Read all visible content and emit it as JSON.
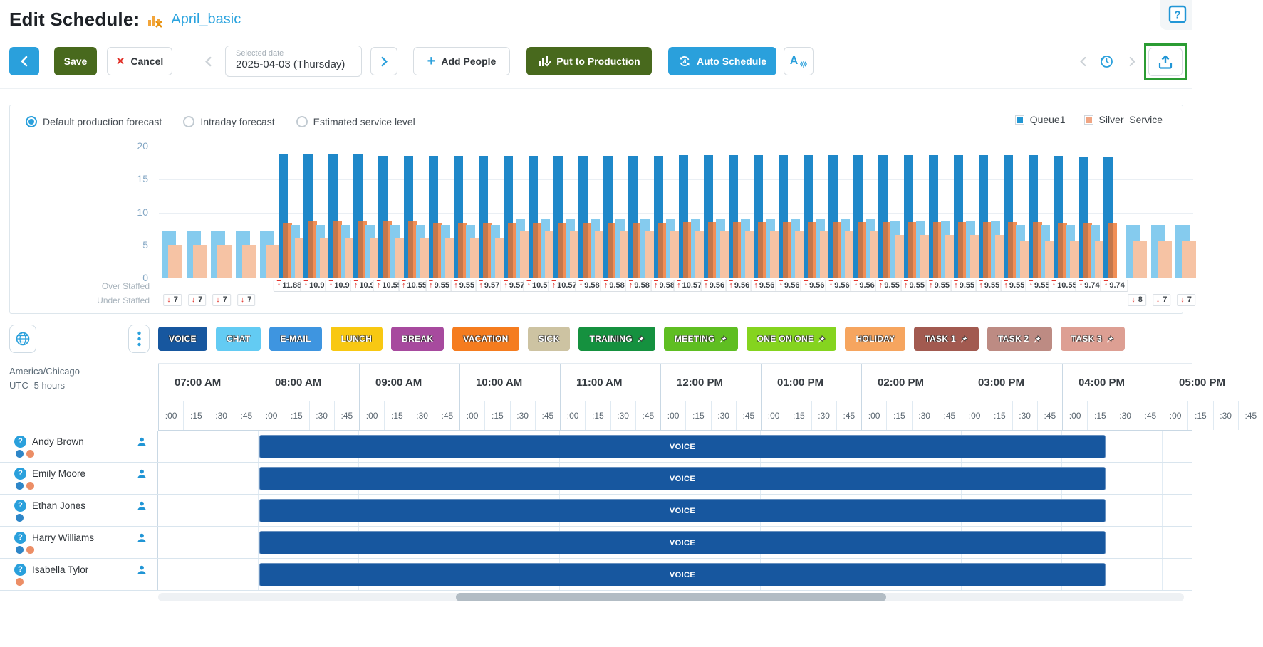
{
  "colors": {
    "accent_blue": "#2aa0dc",
    "link_blue": "#29a3dd",
    "dark_green": "#48691d",
    "red": "#e2342c",
    "voice_bar": "#17579f"
  },
  "header": {
    "title": "Edit Schedule:",
    "schedule_name": "April_basic",
    "help": "?"
  },
  "toolbar": {
    "save": "Save",
    "cancel": "Cancel",
    "cancel_x": "✕",
    "date_label": "Selected date",
    "date_value": "2025-04-03 (Thursday)",
    "add_people": "Add People",
    "put_to_production": "Put to Production",
    "auto_schedule": "Auto Schedule",
    "font_settings_letter": "A"
  },
  "forecast": {
    "options": [
      {
        "label": "Default production forecast",
        "selected": true
      },
      {
        "label": "Intraday forecast",
        "selected": false
      },
      {
        "label": "Estimated service level",
        "selected": false
      }
    ],
    "legend": [
      {
        "label": "Queue1",
        "color": "#2196d3"
      },
      {
        "label": "Silver_Service",
        "color": "#f0a583"
      }
    ]
  },
  "chart_data": {
    "type": "bar",
    "yticks": [
      0,
      5,
      10,
      15,
      20
    ],
    "ylim": [
      0,
      20
    ],
    "legend_position": "top-right",
    "series": [
      {
        "name": "Queue1",
        "color": "#1f88c9",
        "color_light": "#85cbee"
      },
      {
        "name": "Silver_Service",
        "color": "#ee732c",
        "color_light": "#f6c3a4"
      }
    ],
    "over_staffed_label": "Over Staffed",
    "under_staffed_label": "Under Staffed",
    "under_staffed_left": [
      7,
      7,
      7,
      7
    ],
    "under_staffed_right": [
      8,
      7,
      7
    ],
    "over_staffed": [
      11.88,
      10.9,
      10.9,
      10.9,
      10.55,
      10.55,
      9.55,
      9.55,
      9.57,
      9.57,
      10.57,
      10.57,
      9.58,
      9.58,
      9.58,
      9.58,
      10.57,
      9.56,
      9.56,
      9.56,
      9.56,
      9.56,
      9.56,
      9.56,
      9.55,
      9.55,
      9.55,
      9.55,
      9.55,
      9.55,
      9.55,
      10.55,
      9.74,
      9.74
    ],
    "low_slots_left": {
      "queue1": [
        7,
        7,
        7,
        7,
        7
      ],
      "silver": [
        5,
        5,
        5,
        5,
        5
      ]
    },
    "low_slots_right": {
      "queue1": [
        8,
        8,
        8
      ],
      "silver": [
        5.5,
        5.5,
        5.5
      ]
    },
    "high_slots": {
      "queue1_tall": [
        18.8,
        18.8,
        18.8,
        18.8,
        18.5,
        18.5,
        18.5,
        18.5,
        18.5,
        18.5,
        18.5,
        18.5,
        18.5,
        18.5,
        18.5,
        18.5,
        18.6,
        18.6,
        18.6,
        18.6,
        18.6,
        18.6,
        18.6,
        18.6,
        18.6,
        18.6,
        18.6,
        18.6,
        18.6,
        18.6,
        18.6,
        18.5,
        18.3,
        18.3
      ],
      "silver": [
        8.3,
        8.6,
        8.6,
        8.6,
        8.5,
        8.5,
        8.3,
        8.3,
        8.3,
        8.3,
        8.3,
        8.3,
        8.3,
        8.3,
        8.3,
        8.3,
        8.4,
        8.4,
        8.4,
        8.4,
        8.4,
        8.4,
        8.4,
        8.4,
        8.4,
        8.4,
        8.4,
        8.4,
        8.4,
        8.4,
        8.4,
        8.3,
        8.3,
        8.3
      ],
      "queue1_mid": [
        8,
        8,
        8,
        8,
        8,
        8,
        8,
        8,
        8,
        9,
        9,
        9,
        9,
        9,
        9,
        9,
        9,
        9,
        9,
        9,
        9,
        9,
        9,
        9,
        8.5,
        8.5,
        8.5,
        8.5,
        8.5,
        8,
        8,
        8,
        8
      ],
      "silver_mid": [
        6,
        6,
        6,
        6,
        6,
        6,
        6,
        6,
        6,
        7,
        7,
        7,
        7,
        7,
        7,
        7,
        7,
        7,
        7,
        7,
        7,
        7,
        7,
        7,
        6.5,
        6.5,
        6.5,
        6.5,
        6.5,
        5.5,
        5.5,
        5.5,
        5.5
      ]
    }
  },
  "activities": [
    {
      "label": "VOICE",
      "color": "#17579f",
      "pinned": false
    },
    {
      "label": "CHAT",
      "color": "#63cbf3",
      "pinned": false
    },
    {
      "label": "E-MAIL",
      "color": "#3e95e0",
      "pinned": false
    },
    {
      "label": "LUNCH",
      "color": "#f8c812",
      "pinned": false
    },
    {
      "label": "BREAK",
      "color": "#a74a9e",
      "pinned": false
    },
    {
      "label": "VACATION",
      "color": "#f57c1f",
      "pinned": false
    },
    {
      "label": "SICK",
      "color": "#cdc3a2",
      "pinned": false
    },
    {
      "label": "TRAINING",
      "color": "#15913f",
      "pinned": true
    },
    {
      "label": "MEETING",
      "color": "#5fbe22",
      "pinned": true
    },
    {
      "label": "ONE ON ONE",
      "color": "#85d41f",
      "pinned": true
    },
    {
      "label": "HOLIDAY",
      "color": "#f6a55f",
      "pinned": false
    },
    {
      "label": "TASK 1",
      "color": "#a25a50",
      "pinned": true
    },
    {
      "label": "TASK 2",
      "color": "#bd8b83",
      "pinned": true
    },
    {
      "label": "TASK 3",
      "color": "#dd9f93",
      "pinned": true
    }
  ],
  "timezone": {
    "region": "America/Chicago",
    "offset": "UTC -5 hours"
  },
  "timeline": {
    "hours": [
      "07:00 AM",
      "08:00 AM",
      "09:00 AM",
      "10:00 AM",
      "11:00 AM",
      "12:00 PM",
      "01:00 PM",
      "02:00 PM",
      "03:00 PM",
      "04:00 PM",
      "05:00 PM"
    ],
    "quarters": [
      ":00",
      ":15",
      ":30",
      ":45"
    ]
  },
  "schedule": {
    "rows": [
      {
        "name": "Andy Brown",
        "dots": [
          "blue",
          "orange"
        ],
        "shift_label": "VOICE"
      },
      {
        "name": "Emily Moore",
        "dots": [
          "blue",
          "orange"
        ],
        "shift_label": "VOICE"
      },
      {
        "name": "Ethan Jones",
        "dots": [
          "blue"
        ],
        "shift_label": "VOICE"
      },
      {
        "name": "Harry Williams",
        "dots": [
          "blue",
          "orange"
        ],
        "shift_label": "VOICE"
      },
      {
        "name": "Isabella Tylor",
        "dots": [
          "orange"
        ],
        "shift_label": "VOICE"
      }
    ]
  }
}
